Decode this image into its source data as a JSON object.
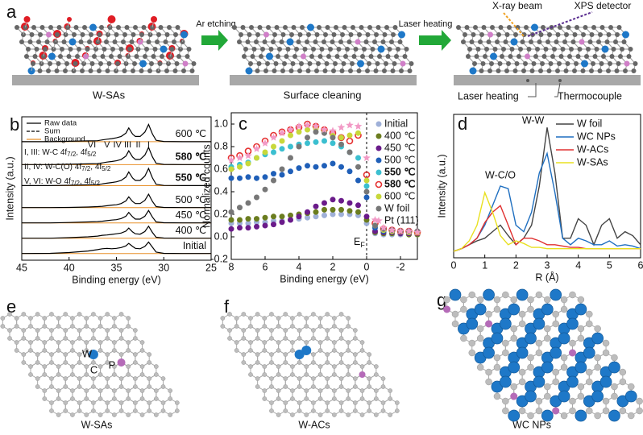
{
  "panels": {
    "a": "a",
    "e": "e",
    "f": "f",
    "g": "g"
  },
  "scheme": {
    "step1": "W-SAs",
    "arrow1": "Ar etching",
    "step2": "Surface cleaning",
    "arrow2": "Laser heating",
    "xray": "X-ray beam",
    "detector": "XPS detector",
    "laser": "Laser heating",
    "thermo": "Thermocouple"
  },
  "models": {
    "e_title": "W-SAs",
    "e_w": "W",
    "e_c": "C",
    "e_p": "P",
    "f_title": "W-ACs",
    "g_title": "WC NPs"
  },
  "chart_data": [
    {
      "type": "line",
      "label": "b",
      "xlabel": "Binding energy (eV)",
      "ylabel": "Intensity (a.u.)",
      "xlim": [
        45,
        25
      ],
      "ylim": [
        0,
        7.5
      ],
      "xticks": [
        45,
        40,
        35,
        30,
        25
      ],
      "legend": [
        {
          "name": "Raw data",
          "color": "#000000",
          "dash": false
        },
        {
          "name": "Sum",
          "color": "#000000",
          "dash": true
        },
        {
          "name": "Background",
          "color": "#e8902a",
          "dash": false
        }
      ],
      "background_color": "#e8902a",
      "peaks": [
        {
          "text": "VI",
          "x": 37.6
        },
        {
          "text": "V",
          "x": 36
        },
        {
          "text": "IV",
          "x": 34.9
        },
        {
          "text": "III",
          "x": 33.8
        },
        {
          "text": "II",
          "x": 32.7
        },
        {
          "text": "I",
          "x": 31.6
        }
      ],
      "notes": [
        {
          "text": "I, III: W-C ",
          "f1": "4f",
          "s1": "7/2",
          "sep": ", ",
          "f2": "4f",
          "s2": "5/2"
        },
        {
          "text": "II, IV: W-C(O) ",
          "f1": "4f",
          "s1": "7/2",
          "sep": ", ",
          "f2": "4f",
          "s2": "5/2"
        },
        {
          "text": "V, VI: W-O ",
          "f1": "4f",
          "s1": "7/2",
          "sep": ", ",
          "f2": "4f",
          "s2": "5/2"
        }
      ],
      "x": [
        45,
        42,
        40,
        38,
        37,
        36.5,
        36,
        35.5,
        35,
        34.5,
        34,
        33.7,
        33.3,
        33,
        32.5,
        32,
        31.6,
        31.2,
        30.8,
        30,
        28,
        25
      ],
      "series": [
        {
          "label": "600 ℃",
          "bold": false,
          "color": "#000000",
          "baseline": 6.2,
          "values": [
            6.2,
            6.2,
            6.22,
            6.24,
            6.25,
            6.29,
            6.33,
            6.36,
            6.4,
            6.47,
            6.65,
            6.92,
            6.6,
            6.47,
            6.47,
            6.7,
            7.1,
            6.6,
            6.27,
            6.21,
            6.2,
            6.2
          ]
        },
        {
          "label": "580 ℃",
          "bold": true,
          "color": "#000000",
          "baseline": 5.0,
          "values": [
            5.0,
            5.0,
            5.02,
            5.04,
            5.05,
            5.09,
            5.13,
            5.16,
            5.2,
            5.27,
            5.45,
            5.72,
            5.4,
            5.27,
            5.27,
            5.5,
            5.9,
            5.4,
            5.07,
            5.01,
            5.0,
            5.0
          ]
        },
        {
          "label": "550 ℃",
          "bold": true,
          "color": "#000000",
          "baseline": 3.9,
          "values": [
            3.9,
            3.9,
            3.92,
            3.94,
            3.95,
            3.99,
            4.03,
            4.06,
            4.1,
            4.17,
            4.35,
            4.62,
            4.3,
            4.17,
            4.17,
            4.4,
            4.8,
            4.3,
            3.97,
            3.91,
            3.9,
            3.9
          ]
        },
        {
          "label": "500 ℃",
          "bold": false,
          "color": "#000000",
          "baseline": 2.75,
          "values": [
            2.75,
            2.75,
            2.76,
            2.78,
            2.8,
            2.82,
            2.85,
            2.88,
            2.9,
            2.96,
            3.1,
            3.31,
            3.07,
            2.96,
            2.96,
            3.13,
            3.45,
            3.07,
            2.8,
            2.76,
            2.75,
            2.75
          ]
        },
        {
          "label": "450 ℃",
          "bold": false,
          "color": "#000000",
          "baseline": 1.95,
          "values": [
            1.95,
            1.95,
            1.97,
            2.0,
            2.02,
            2.04,
            2.07,
            2.1,
            2.12,
            2.18,
            2.3,
            2.5,
            2.27,
            2.15,
            2.15,
            2.3,
            2.6,
            2.25,
            2.0,
            1.96,
            1.95,
            1.95
          ]
        },
        {
          "label": "400 ℃",
          "bold": false,
          "color": "#000000",
          "baseline": 1.15,
          "values": [
            1.15,
            1.15,
            1.18,
            1.22,
            1.26,
            1.3,
            1.32,
            1.35,
            1.38,
            1.42,
            1.52,
            1.68,
            1.48,
            1.38,
            1.36,
            1.5,
            1.78,
            1.45,
            1.2,
            1.16,
            1.15,
            1.15
          ]
        },
        {
          "label": "Initial",
          "bold": false,
          "color": "#000000",
          "baseline": 0.35,
          "values": [
            0.35,
            0.36,
            0.4,
            0.48,
            0.55,
            0.6,
            0.62,
            0.6,
            0.62,
            0.66,
            0.75,
            0.88,
            0.72,
            0.62,
            0.6,
            0.72,
            0.95,
            0.68,
            0.42,
            0.36,
            0.35,
            0.35
          ]
        }
      ]
    },
    {
      "type": "scatter",
      "label": "c",
      "xlabel": "Binding energy (eV)",
      "ylabel": "Normalized counts",
      "xlim": [
        8,
        -3
      ],
      "ylim": [
        -0.2,
        1.1
      ],
      "xticks": [
        8,
        6,
        4,
        2,
        0,
        -2
      ],
      "yticks": [
        -0.2,
        {
          "value": 0,
          "label": "0.0"
        },
        0.2,
        0.4,
        0.6,
        0.8,
        {
          "value": 1,
          "label": "1.0"
        }
      ],
      "ef": {
        "text": "E",
        "sub": "F",
        "x": 0
      },
      "x": [
        8,
        7.5,
        7,
        6.5,
        6,
        5.5,
        5,
        4.5,
        4,
        3.5,
        3,
        2.5,
        2,
        1.5,
        1,
        0.5,
        0,
        -0.5,
        -1,
        -1.5,
        -2,
        -2.5,
        -3
      ],
      "series": [
        {
          "name": "Initial",
          "color": "#9fb0d8",
          "marker": "circle",
          "bold": false,
          "values": [
            0.12,
            0.12,
            0.12,
            0.13,
            0.13,
            0.14,
            0.14,
            0.15,
            0.16,
            0.17,
            0.18,
            0.19,
            0.2,
            0.2,
            0.2,
            0.19,
            0.12,
            0.03,
            0.02,
            0.02,
            0.02,
            0.02,
            0.02
          ]
        },
        {
          "name": "400 ℃",
          "color": "#6b7d1f",
          "marker": "circle",
          "bold": false,
          "values": [
            0.15,
            0.15,
            0.16,
            0.16,
            0.17,
            0.18,
            0.18,
            0.19,
            0.2,
            0.21,
            0.22,
            0.24,
            0.24,
            0.24,
            0.23,
            0.22,
            0.15,
            0.04,
            0.03,
            0.03,
            0.03,
            0.02,
            0.02
          ]
        },
        {
          "name": "450 ℃",
          "color": "#6a1b8a",
          "marker": "circle",
          "bold": false,
          "values": [
            0.07,
            0.08,
            0.08,
            0.09,
            0.1,
            0.11,
            0.13,
            0.15,
            0.18,
            0.22,
            0.27,
            0.3,
            0.33,
            0.32,
            0.3,
            0.28,
            0.18,
            0.05,
            0.04,
            0.04,
            0.03,
            0.03,
            0.03
          ]
        },
        {
          "name": "500 ℃",
          "color": "#1f5fb8",
          "marker": "circle",
          "bold": false,
          "values": [
            0.52,
            0.52,
            0.53,
            0.52,
            0.53,
            0.56,
            0.55,
            0.58,
            0.61,
            0.63,
            0.62,
            0.63,
            0.65,
            0.62,
            0.58,
            0.5,
            0.35,
            0.08,
            0.05,
            0.05,
            0.04,
            0.04,
            0.03
          ]
        },
        {
          "name": "550 ℃",
          "color": "#3bbfd0",
          "marker": "circle",
          "bold": true,
          "values": [
            0.62,
            0.64,
            0.66,
            0.7,
            0.73,
            0.75,
            0.78,
            0.8,
            0.82,
            0.83,
            0.84,
            0.85,
            0.83,
            0.8,
            0.75,
            0.7,
            0.45,
            0.1,
            0.06,
            0.05,
            0.05,
            0.04,
            0.04
          ]
        },
        {
          "name": "580 ℃",
          "color": "#e53030",
          "marker": "open",
          "bold": true,
          "values": [
            0.7,
            0.72,
            0.76,
            0.8,
            0.85,
            0.9,
            0.93,
            0.95,
            0.97,
            1.0,
            0.98,
            0.95,
            0.92,
            0.88,
            0.85,
            0.9,
            0.55,
            0.12,
            0.07,
            0.06,
            0.05,
            0.05,
            0.04
          ]
        },
        {
          "name": "600 ℃",
          "color": "#c8d83a",
          "marker": "circle",
          "bold": false,
          "values": [
            0.6,
            0.62,
            0.65,
            0.7,
            0.75,
            0.8,
            0.85,
            0.9,
            0.93,
            0.95,
            0.96,
            0.93,
            0.9,
            0.88,
            0.9,
            0.92,
            0.5,
            0.1,
            0.06,
            0.05,
            0.05,
            0.04,
            0.04
          ]
        },
        {
          "name": "W foil",
          "color": "#777777",
          "marker": "circle",
          "bold": false,
          "values": [
            0.22,
            0.26,
            0.3,
            0.35,
            0.42,
            0.5,
            0.6,
            0.7,
            0.8,
            0.88,
            0.93,
            0.92,
            0.88,
            0.82,
            0.75,
            0.62,
            0.4,
            0.1,
            0.07,
            0.06,
            0.05,
            0.05,
            0.05
          ]
        },
        {
          "name": "Pt (111)",
          "color": "#f29ac6",
          "marker": "star",
          "bold": false,
          "values": [
            0.68,
            0.7,
            0.72,
            0.78,
            0.83,
            0.88,
            0.92,
            0.95,
            0.98,
            0.99,
            0.98,
            0.95,
            0.94,
            0.97,
            0.99,
            0.98,
            0.7,
            0.15,
            0.08,
            0.06,
            0.05,
            0.05,
            0.04
          ]
        }
      ]
    },
    {
      "type": "line",
      "label": "d",
      "xlabel": "R (Å)",
      "ylabel": "Intensity (a.u.)",
      "xlim": [
        0,
        6
      ],
      "ylim": [
        -0.05,
        1.05
      ],
      "xticks": [
        0,
        1,
        2,
        3,
        4,
        5,
        6
      ],
      "annotations": [
        {
          "text": "W-W",
          "x": 2.55,
          "y": 1.0
        },
        {
          "text": "W-C/O",
          "x": 1.5,
          "y": 0.58
        }
      ],
      "x": [
        0,
        0.25,
        0.5,
        0.75,
        1,
        1.25,
        1.5,
        1.75,
        2,
        2.25,
        2.5,
        2.75,
        3,
        3.25,
        3.5,
        3.75,
        4,
        4.25,
        4.5,
        4.75,
        5,
        5.25,
        5.5,
        5.75,
        6
      ],
      "series": [
        {
          "name": "W foil",
          "color": "#444444",
          "values": [
            0,
            0.02,
            0.05,
            0.08,
            0.1,
            0.15,
            0.2,
            0.12,
            0.05,
            0.1,
            0.2,
            0.5,
            0.95,
            0.6,
            0.1,
            0.1,
            0.25,
            0.2,
            0.05,
            0.2,
            0.25,
            0.1,
            0.15,
            0.12,
            0.05
          ]
        },
        {
          "name": "WC NPs",
          "color": "#1f6fc0",
          "values": [
            0,
            0.02,
            0.05,
            0.1,
            0.2,
            0.35,
            0.5,
            0.48,
            0.2,
            0.15,
            0.3,
            0.6,
            0.75,
            0.45,
            0.1,
            0.05,
            0.1,
            0.08,
            0.05,
            0.05,
            0.08,
            0.04,
            0.05,
            0.04,
            0.02
          ]
        },
        {
          "name": "W-ACs",
          "color": "#e03030",
          "values": [
            0,
            0.02,
            0.05,
            0.1,
            0.22,
            0.3,
            0.35,
            0.2,
            0.05,
            0.1,
            0.1,
            0.08,
            0.05,
            0.05,
            0.04,
            0.03,
            0.03,
            0.02,
            0.02,
            0.02,
            0.02,
            0.02,
            0.02,
            0.02,
            0.02
          ]
        },
        {
          "name": "W-SAs",
          "color": "#e8e020",
          "values": [
            0,
            0.02,
            0.08,
            0.2,
            0.45,
            0.3,
            0.12,
            0.05,
            0.08,
            0.06,
            0.03,
            0.03,
            0.02,
            0.02,
            0.02,
            0.02,
            0.02,
            0.02,
            0.02,
            0.02,
            0.02,
            0.02,
            0.02,
            0.02,
            0.02
          ]
        }
      ]
    }
  ]
}
